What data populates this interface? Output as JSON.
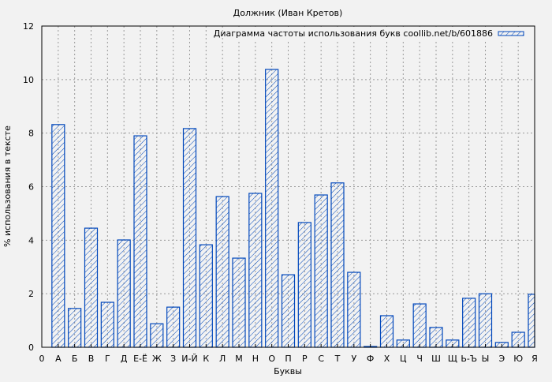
{
  "chart_data": {
    "type": "bar",
    "title": "Должник (Иван Кретов)",
    "xlabel": "Буквы",
    "ylabel": "% использования в тексте",
    "legend": {
      "label": "Диаграмма частоты использования букв coollib.net/b/601886",
      "placement": "top-right"
    },
    "x_zero_label": "0",
    "categories": [
      "А",
      "Б",
      "В",
      "Г",
      "Д",
      "Е-Ё",
      "Ж",
      "З",
      "И-Й",
      "К",
      "Л",
      "М",
      "Н",
      "О",
      "П",
      "Р",
      "С",
      "Т",
      "У",
      "Ф",
      "Х",
      "Ц",
      "Ч",
      "Ш",
      "Щ",
      "Ь-Ъ",
      "Ы",
      "Э",
      "Ю",
      "Я"
    ],
    "values": [
      8.32,
      1.45,
      4.45,
      1.68,
      4.01,
      7.9,
      0.88,
      1.5,
      8.17,
      3.83,
      5.63,
      3.33,
      5.75,
      10.38,
      2.71,
      4.66,
      5.69,
      6.14,
      2.8,
      0.03,
      1.18,
      0.27,
      1.62,
      0.74,
      0.27,
      1.83,
      2.0,
      0.18,
      0.56,
      1.98
    ],
    "ylim": [
      0,
      12
    ],
    "xlim": [
      0,
      30
    ],
    "yticks": [
      0,
      2,
      4,
      6,
      8,
      10,
      12
    ],
    "grid": true,
    "bar_color": "#0047bb"
  }
}
